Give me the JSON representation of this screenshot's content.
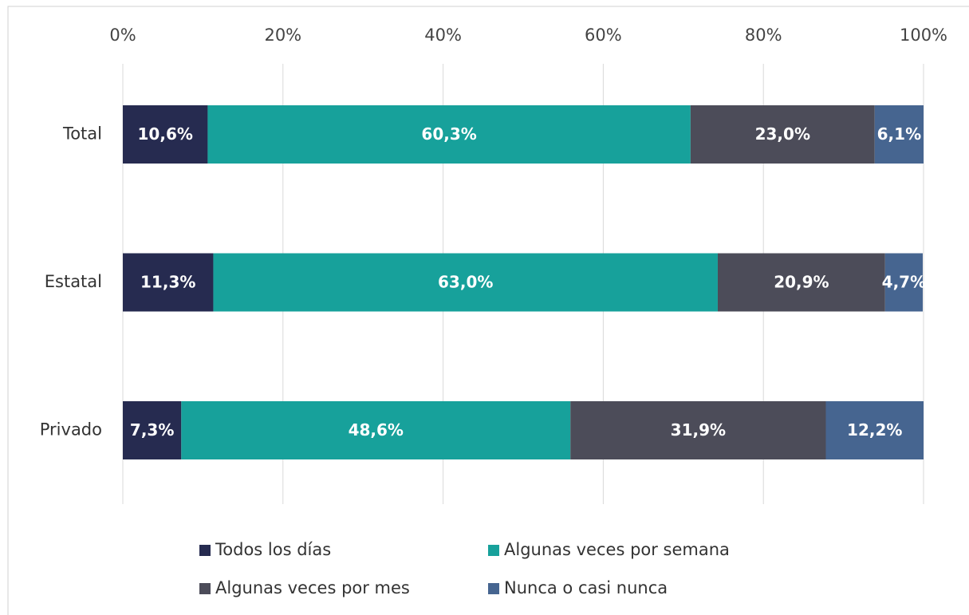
{
  "chart_data": {
    "type": "stacked-bar-horizontal",
    "categories": [
      "Total",
      "Estatal",
      "Privado"
    ],
    "series": [
      {
        "name": "Todos los días",
        "color": "#262b50",
        "values": [
          10.6,
          11.3,
          7.3
        ],
        "value_labels": [
          "10,6%",
          "11,3%",
          "7,3%"
        ]
      },
      {
        "name": "Algunas veces por semana",
        "color": "#17a19b",
        "values": [
          60.3,
          63.0,
          48.6
        ],
        "value_labels": [
          "60,3%",
          "63,0%",
          "48,6%"
        ]
      },
      {
        "name": "Algunas veces por mes",
        "color": "#4c4c59",
        "values": [
          23.0,
          20.9,
          31.9
        ],
        "value_labels": [
          "23,0%",
          "20,9%",
          "31,9%"
        ]
      },
      {
        "name": "Nunca o casi nunca",
        "color": "#466590",
        "values": [
          6.1,
          4.7,
          12.2
        ],
        "value_labels": [
          "6,1%",
          "4,7%",
          "12,2%"
        ]
      }
    ],
    "xlim": [
      0,
      100
    ],
    "xticks": [
      {
        "value": 0,
        "label": "0%"
      },
      {
        "value": 20,
        "label": "20%"
      },
      {
        "value": 40,
        "label": "40%"
      },
      {
        "value": 60,
        "label": "60%"
      },
      {
        "value": 80,
        "label": "80%"
      },
      {
        "value": 100,
        "label": "100%"
      }
    ],
    "grid": true,
    "legend": "bottom"
  }
}
